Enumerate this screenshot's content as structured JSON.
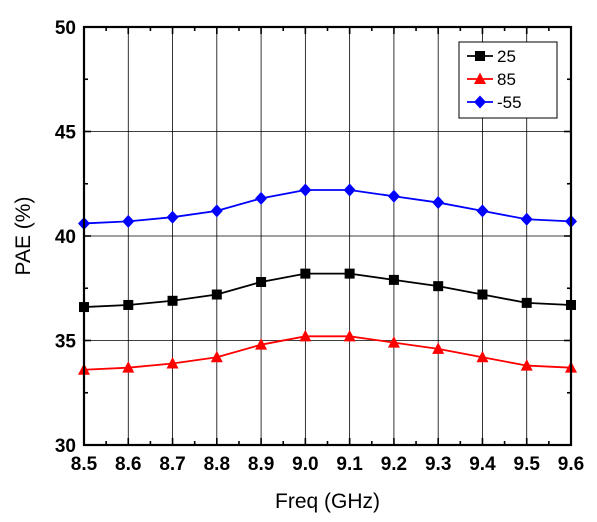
{
  "chart_data": {
    "type": "line",
    "title": "",
    "xlabel": "Freq (GHz)",
    "ylabel": "PAE (%)",
    "xlim": [
      8.5,
      9.6
    ],
    "ylim": [
      30,
      50
    ],
    "xticks": [
      "8.5",
      "8.6",
      "8.7",
      "8.8",
      "8.9",
      "9.0",
      "9.1",
      "9.2",
      "9.3",
      "9.4",
      "9.5",
      "9.6"
    ],
    "yticks": [
      "30",
      "35",
      "40",
      "45",
      "50"
    ],
    "grid": true,
    "legend_position": "top-right",
    "x": [
      8.5,
      8.6,
      8.7,
      8.8,
      8.9,
      9.0,
      9.1,
      9.2,
      9.3,
      9.4,
      9.5,
      9.6
    ],
    "series": [
      {
        "name": "25",
        "color": "#000000",
        "marker": "square",
        "values": [
          36.6,
          36.7,
          36.9,
          37.2,
          37.8,
          38.2,
          38.2,
          37.9,
          37.6,
          37.2,
          36.8,
          36.7
        ]
      },
      {
        "name": "85",
        "color": "#ff0000",
        "marker": "triangle",
        "values": [
          33.6,
          33.7,
          33.9,
          34.2,
          34.8,
          35.2,
          35.2,
          34.9,
          34.6,
          34.2,
          33.8,
          33.7
        ]
      },
      {
        "name": "-55",
        "color": "#0000ff",
        "marker": "diamond",
        "values": [
          40.6,
          40.7,
          40.9,
          41.2,
          41.8,
          42.2,
          42.2,
          41.9,
          41.6,
          41.2,
          40.8,
          40.7
        ]
      }
    ]
  }
}
